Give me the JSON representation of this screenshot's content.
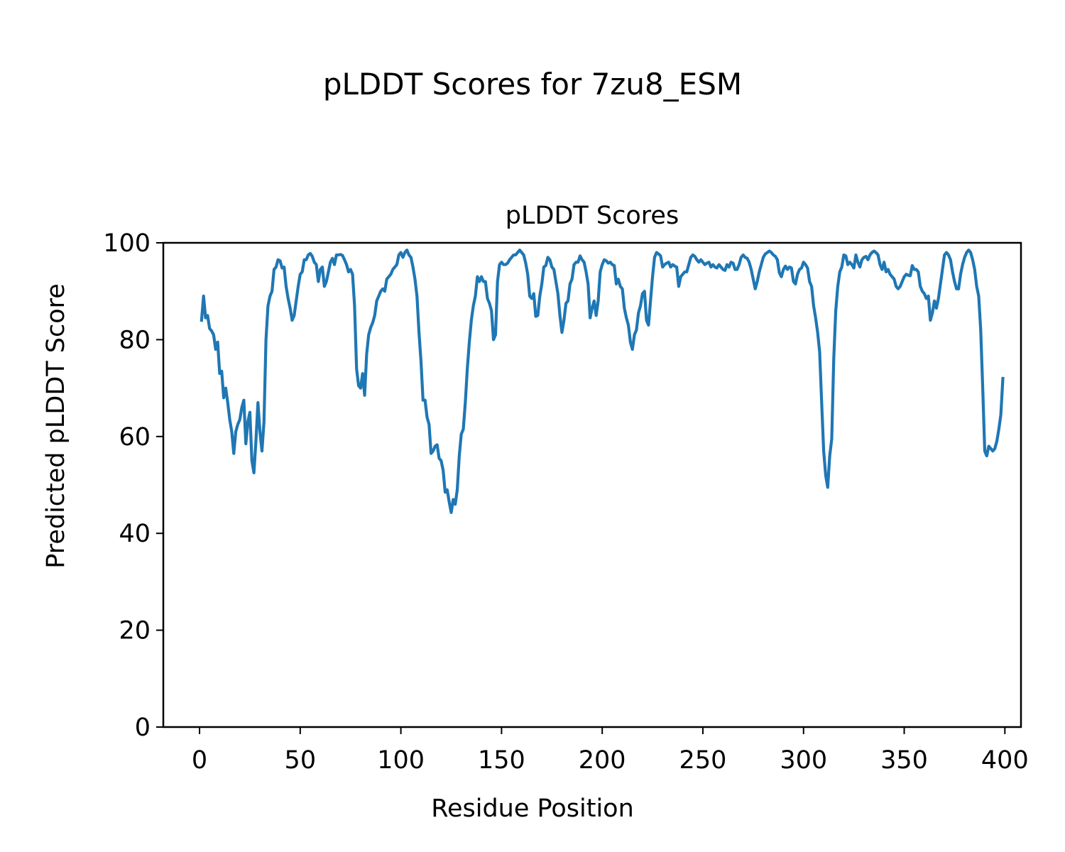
{
  "figure": {
    "suptitle": "pLDDT Scores for 7zu8_ESM"
  },
  "chart_data": {
    "type": "line",
    "title": "pLDDT Scores",
    "xlabel": "Residue Position",
    "ylabel": "Predicted pLDDT Score",
    "xlim": [
      -18,
      408
    ],
    "ylim": [
      0,
      100
    ],
    "xticks": [
      0,
      50,
      100,
      150,
      200,
      250,
      300,
      350,
      400
    ],
    "yticks": [
      0,
      20,
      40,
      60,
      80,
      100
    ],
    "grid": false,
    "legend": "none",
    "series_color": "#1f77b4",
    "x_start": 1,
    "x_step": 1,
    "series": [
      {
        "values": [
          84.0,
          89.0,
          84.5,
          85.0,
          82.3,
          81.8,
          81.0,
          78.0,
          79.5,
          73.0,
          73.5,
          68.0,
          70.0,
          67.0,
          63.5,
          61.0,
          56.5,
          61.0,
          62.5,
          63.5,
          66.0,
          67.5,
          58.5,
          63.0,
          65.0,
          55.0,
          52.5,
          59.0,
          67.0,
          61.0,
          57.0,
          63.0,
          80.0,
          87.0,
          89.0,
          90.0,
          94.5,
          95.0,
          96.5,
          96.3,
          94.8,
          95.0,
          91.0,
          88.5,
          86.5,
          84.0,
          85.0,
          88.0,
          91.0,
          93.5,
          94.0,
          96.5,
          96.5,
          97.5,
          97.8,
          97.2,
          96.0,
          95.5,
          92.0,
          94.5,
          95.0,
          91.0,
          92.0,
          94.0,
          96.0,
          96.8,
          95.5,
          97.5,
          97.5,
          97.6,
          97.4,
          96.5,
          95.5,
          94.0,
          94.5,
          93.5,
          87.0,
          74.0,
          70.5,
          70.0,
          73.0,
          68.5,
          77.0,
          81.0,
          82.5,
          83.5,
          85.0,
          88.0,
          89.0,
          90.0,
          90.5,
          90.0,
          92.5,
          93.0,
          93.5,
          94.5,
          95.0,
          95.5,
          97.5,
          98.0,
          97.0,
          98.0,
          98.5,
          97.5,
          97.0,
          95.0,
          92.5,
          89.0,
          81.5,
          75.5,
          67.5,
          67.5,
          64.0,
          62.5,
          56.5,
          57.0,
          58.0,
          58.3,
          55.5,
          55.0,
          53.0,
          48.5,
          49.0,
          46.5,
          44.3,
          47.0,
          46.0,
          49.0,
          56.0,
          60.5,
          61.5,
          67.0,
          74.0,
          79.5,
          84.0,
          87.0,
          89.0,
          93.0,
          92.0,
          93.0,
          92.0,
          92.0,
          88.5,
          87.5,
          86.0,
          80.0,
          81.0,
          92.0,
          95.5,
          96.0,
          95.5,
          95.5,
          95.8,
          96.5,
          97.0,
          97.5,
          97.5,
          98.0,
          98.5,
          98.0,
          97.5,
          95.8,
          93.5,
          89.0,
          88.5,
          89.5,
          84.8,
          85.0,
          89.0,
          91.5,
          95.0,
          95.3,
          97.0,
          96.5,
          95.0,
          94.5,
          92.0,
          89.5,
          85.0,
          81.5,
          84.0,
          87.5,
          88.0,
          91.5,
          92.5,
          95.5,
          96.0,
          96.0,
          97.3,
          96.5,
          96.0,
          94.0,
          91.5,
          84.5,
          86.5,
          88.0,
          85.0,
          88.0,
          94.0,
          95.5,
          96.5,
          96.3,
          95.8,
          96.0,
          95.5,
          95.3,
          91.5,
          92.5,
          91.0,
          90.5,
          86.5,
          84.5,
          83.0,
          79.5,
          78.0,
          81.0,
          82.0,
          85.5,
          87.0,
          89.5,
          90.0,
          84.0,
          83.0,
          88.0,
          93.0,
          97.0,
          98.0,
          97.7,
          97.3,
          95.0,
          95.5,
          95.8,
          96.0,
          95.0,
          95.5,
          95.2,
          95.0,
          91.0,
          93.0,
          93.5,
          94.0,
          94.0,
          95.5,
          97.0,
          97.5,
          97.2,
          96.5,
          96.0,
          96.5,
          96.0,
          95.5,
          95.8,
          96.0,
          95.0,
          95.5,
          95.0,
          94.8,
          95.5,
          95.0,
          94.5,
          94.3,
          95.5,
          95.0,
          96.0,
          95.8,
          94.5,
          94.5,
          95.5,
          97.0,
          97.5,
          97.0,
          96.8,
          96.0,
          94.5,
          92.5,
          90.5,
          92.0,
          94.0,
          95.5,
          97.0,
          97.7,
          98.0,
          98.3,
          98.0,
          97.5,
          97.2,
          96.5,
          93.8,
          93.0,
          94.5,
          95.2,
          94.5,
          95.0,
          94.8,
          92.0,
          91.5,
          93.5,
          94.5,
          94.8,
          96.0,
          95.5,
          94.8,
          92.0,
          91.0,
          87.0,
          84.5,
          81.5,
          77.5,
          67.0,
          57.0,
          52.0,
          49.5,
          56.0,
          59.5,
          76.0,
          86.0,
          91.0,
          94.0,
          95.0,
          97.5,
          97.3,
          95.5,
          96.0,
          95.5,
          94.8,
          97.5,
          96.0,
          95.0,
          96.5,
          97.0,
          97.2,
          96.5,
          97.5,
          98.0,
          98.3,
          98.0,
          97.5,
          95.5,
          94.5,
          96.0,
          94.0,
          94.5,
          93.5,
          93.0,
          92.5,
          91.0,
          90.5,
          91.0,
          92.0,
          93.0,
          93.5,
          93.3,
          93.2,
          95.3,
          94.5,
          94.5,
          94.0,
          91.0,
          90.0,
          89.5,
          88.5,
          89.0,
          84.0,
          85.5,
          88.0,
          86.5,
          88.5,
          91.5,
          94.5,
          97.5,
          98.0,
          97.5,
          96.5,
          94.0,
          92.0,
          90.5,
          90.5,
          93.5,
          95.5,
          97.0,
          98.0,
          98.5,
          98.0,
          96.5,
          94.5,
          91.0,
          89.0,
          82.0,
          70.0,
          57.0,
          56.0,
          58.0,
          57.5,
          57.0,
          57.5,
          59.0,
          61.5,
          64.5,
          72.0
        ]
      }
    ]
  }
}
